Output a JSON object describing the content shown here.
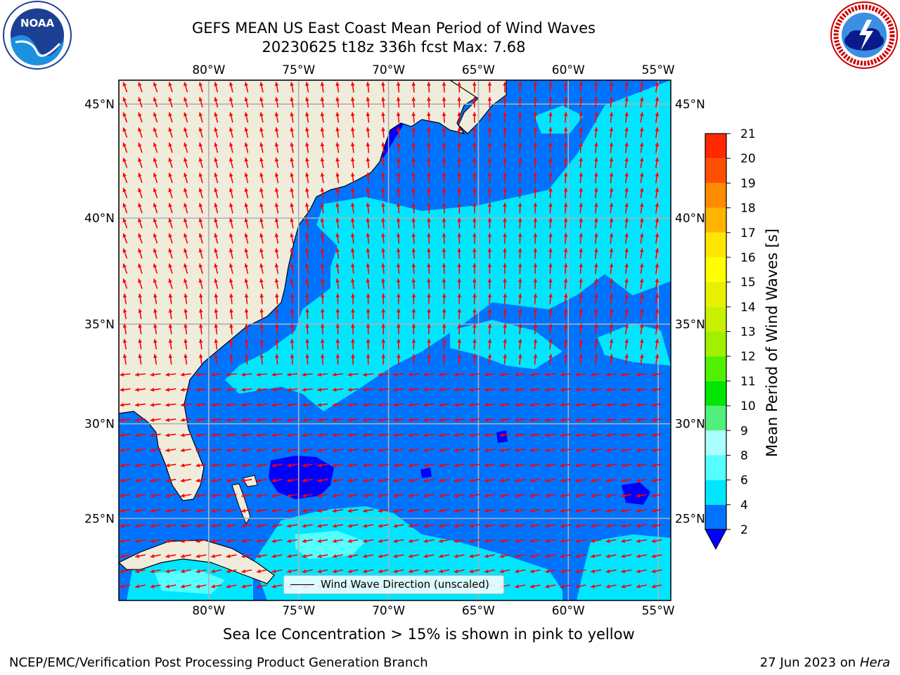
{
  "header": {
    "title_line1": "GEFS MEAN US East Coast Mean Period of Wind Waves",
    "title_line2": "20230625 t18z 336h fcst   Max: 7.68"
  },
  "logos": {
    "noaa_text": "NOAA",
    "noaa_ring_text": "NATIONAL OCEANIC AND ATMOSPHERIC ADMINISTRATION · U.S. DEPARTMENT OF COMMERCE",
    "nws_ring_text": "NATIONAL WEATHER SERVICE"
  },
  "map": {
    "lon_labels": [
      "80°W",
      "75°W",
      "70°W",
      "65°W",
      "60°W",
      "55°W"
    ],
    "lon_values": [
      -80,
      -75,
      -70,
      -65,
      -60,
      -55
    ],
    "lat_labels": [
      "45°N",
      "40°N",
      "35°N",
      "30°N",
      "25°N"
    ],
    "lat_values": [
      45,
      40,
      35,
      30,
      25
    ],
    "lon_range": [
      -85,
      -54.3
    ],
    "lat_range": [
      20.5,
      46
    ],
    "colors": {
      "land": "#efecdc",
      "ocean_2_4": "#0073ff",
      "ocean_4_6": "#00e6ff",
      "ocean_6_8": "#55ffff",
      "ocean_under_2": "#0000ff",
      "arrow": "#ff0000",
      "grid": "#b0b0b0"
    },
    "legend_label": "Wind Wave Direction (unscaled)"
  },
  "colorbar": {
    "label": "Mean Period of Wind Waves [s]",
    "ticks": [
      "2",
      "4",
      "6",
      "8",
      "9",
      "10",
      "11",
      "12",
      "13",
      "14",
      "15",
      "16",
      "17",
      "18",
      "19",
      "20",
      "21"
    ],
    "colors": [
      "#0073ff",
      "#00e6ff",
      "#55ffff",
      "#aaffff",
      "#50f07a",
      "#00e600",
      "#50f000",
      "#a0f000",
      "#c8f000",
      "#e6f000",
      "#ffff00",
      "#ffe600",
      "#ffb400",
      "#ff8c00",
      "#ff5000",
      "#ff2800"
    ],
    "under_color": "#0000ff"
  },
  "footer": {
    "ice_note": "Sea Ice Concentration > 15% is shown in pink to yellow",
    "credit": "NCEP/EMC/Verification Post Processing Product Generation Branch",
    "date": "27 Jun 2023 on",
    "machine": "Hera"
  }
}
